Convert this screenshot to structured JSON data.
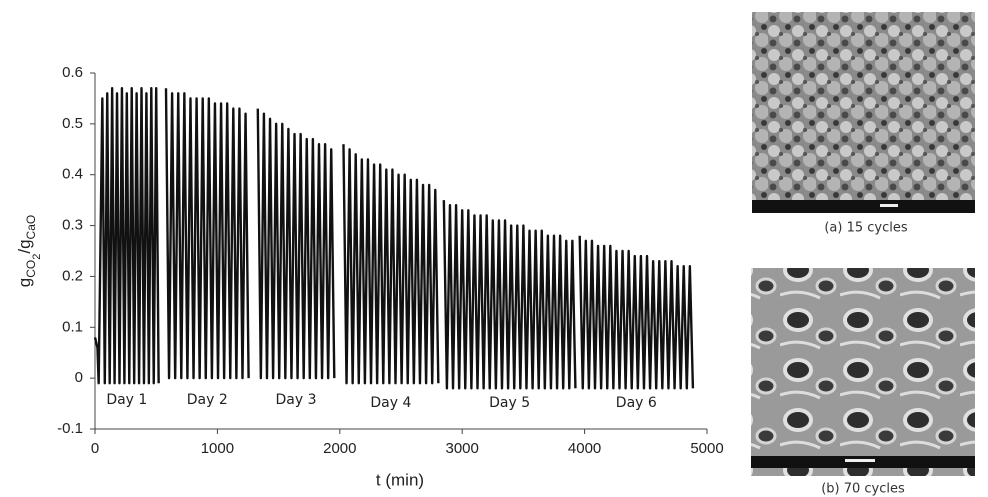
{
  "chart_data": {
    "type": "line",
    "xlabel": "t (min)",
    "ylabel": [
      "g",
      "CO",
      "2",
      "/g",
      "CaO"
    ],
    "xlim": [
      0,
      5000
    ],
    "xticks": [
      0,
      1000,
      2000,
      3000,
      4000,
      5000
    ],
    "ylim": [
      -0.1,
      0.6
    ],
    "yticks": [
      -0.1,
      0,
      0.1,
      0.2,
      0.3,
      0.4,
      0.5,
      0.6
    ],
    "series": [
      {
        "name": "Day 1",
        "color": "#111111",
        "x": [
          0,
          20,
          30,
          60,
          80,
          100,
          120,
          140,
          160,
          180,
          200,
          220,
          240,
          260,
          280,
          300,
          320,
          340,
          360,
          380,
          400,
          420,
          440,
          460,
          480,
          500,
          520
        ],
        "values": [
          0.08,
          0.06,
          -0.01,
          0.55,
          -0.01,
          0.56,
          -0.01,
          0.57,
          -0.01,
          0.56,
          -0.01,
          0.57,
          -0.01,
          0.56,
          -0.01,
          0.57,
          -0.01,
          0.56,
          -0.01,
          0.57,
          -0.01,
          0.56,
          -0.01,
          0.57,
          -0.01,
          0.57,
          -0.01
        ]
      },
      {
        "name": "Day 2",
        "color": "#111111",
        "x": [
          580,
          605,
          630,
          655,
          680,
          705,
          730,
          755,
          780,
          805,
          830,
          855,
          880,
          905,
          930,
          955,
          980,
          1005,
          1030,
          1055,
          1080,
          1105,
          1130,
          1155,
          1180,
          1205,
          1230,
          1255
        ],
        "values": [
          0.57,
          0,
          0.56,
          0,
          0.56,
          0,
          0.56,
          0,
          0.55,
          0,
          0.55,
          0,
          0.55,
          0,
          0.55,
          0,
          0.54,
          0,
          0.54,
          0,
          0.54,
          0,
          0.53,
          0,
          0.53,
          0,
          0.52,
          0
        ]
      },
      {
        "name": "Day 3",
        "color": "#111111",
        "x": [
          1330,
          1355,
          1380,
          1405,
          1430,
          1455,
          1480,
          1505,
          1530,
          1555,
          1580,
          1605,
          1630,
          1655,
          1680,
          1705,
          1730,
          1755,
          1780,
          1805,
          1830,
          1855,
          1880,
          1905,
          1930,
          1955
        ],
        "values": [
          0.53,
          0,
          0.52,
          0,
          0.51,
          0,
          0.5,
          0,
          0.5,
          0,
          0.49,
          0,
          0.48,
          0,
          0.48,
          0,
          0.47,
          0,
          0.47,
          0,
          0.46,
          0,
          0.46,
          0,
          0.45,
          0
        ]
      },
      {
        "name": "Day 4",
        "color": "#111111",
        "x": [
          2030,
          2055,
          2080,
          2105,
          2130,
          2155,
          2180,
          2205,
          2230,
          2255,
          2280,
          2305,
          2330,
          2355,
          2380,
          2405,
          2430,
          2455,
          2480,
          2505,
          2530,
          2555,
          2580,
          2605,
          2630,
          2655,
          2680,
          2705,
          2730,
          2755,
          2780,
          2805
        ],
        "values": [
          0.46,
          -0.01,
          0.45,
          -0.01,
          0.44,
          -0.01,
          0.43,
          -0.01,
          0.43,
          -0.01,
          0.42,
          -0.01,
          0.42,
          -0.01,
          0.41,
          -0.01,
          0.41,
          -0.01,
          0.4,
          -0.01,
          0.4,
          -0.01,
          0.39,
          -0.01,
          0.39,
          -0.01,
          0.38,
          -0.01,
          0.38,
          -0.01,
          0.37,
          -0.01
        ]
      },
      {
        "name": "Day 5",
        "color": "#111111",
        "x": [
          2850,
          2875,
          2900,
          2925,
          2950,
          2975,
          3000,
          3025,
          3050,
          3075,
          3100,
          3125,
          3150,
          3175,
          3200,
          3225,
          3250,
          3275,
          3300,
          3325,
          3350,
          3375,
          3400,
          3425,
          3450,
          3475,
          3500,
          3525,
          3550,
          3575,
          3600,
          3625,
          3650,
          3675,
          3700,
          3725,
          3750,
          3775,
          3800,
          3825,
          3850,
          3875,
          3900,
          3925
        ],
        "values": [
          0.35,
          -0.02,
          0.34,
          -0.02,
          0.34,
          -0.02,
          0.33,
          -0.02,
          0.33,
          -0.02,
          0.32,
          -0.02,
          0.32,
          -0.02,
          0.32,
          -0.02,
          0.31,
          -0.02,
          0.31,
          -0.02,
          0.31,
          -0.02,
          0.3,
          -0.02,
          0.3,
          -0.02,
          0.3,
          -0.02,
          0.29,
          -0.02,
          0.29,
          -0.02,
          0.29,
          -0.02,
          0.28,
          -0.02,
          0.28,
          -0.02,
          0.28,
          -0.02,
          0.27,
          -0.02,
          0.27,
          -0.02
        ]
      },
      {
        "name": "Day 6",
        "color": "#111111",
        "x": [
          3960,
          3985,
          4010,
          4035,
          4060,
          4085,
          4110,
          4135,
          4160,
          4185,
          4210,
          4235,
          4260,
          4285,
          4310,
          4335,
          4360,
          4385,
          4410,
          4435,
          4460,
          4485,
          4510,
          4535,
          4560,
          4585,
          4610,
          4635,
          4660,
          4685,
          4710,
          4735,
          4760,
          4785,
          4810,
          4835,
          4860,
          4885
        ],
        "values": [
          0.28,
          -0.02,
          0.27,
          -0.02,
          0.27,
          -0.02,
          0.26,
          -0.02,
          0.26,
          -0.02,
          0.26,
          -0.02,
          0.25,
          -0.02,
          0.25,
          -0.02,
          0.25,
          -0.02,
          0.24,
          -0.02,
          0.24,
          -0.02,
          0.24,
          -0.02,
          0.23,
          -0.02,
          0.23,
          -0.02,
          0.23,
          -0.02,
          0.23,
          -0.02,
          0.22,
          -0.02,
          0.22,
          -0.02,
          0.22,
          -0.02
        ]
      }
    ]
  },
  "images": [
    {
      "caption": "(a) 15 cycles"
    },
    {
      "caption": "(b) 70 cycles"
    }
  ]
}
